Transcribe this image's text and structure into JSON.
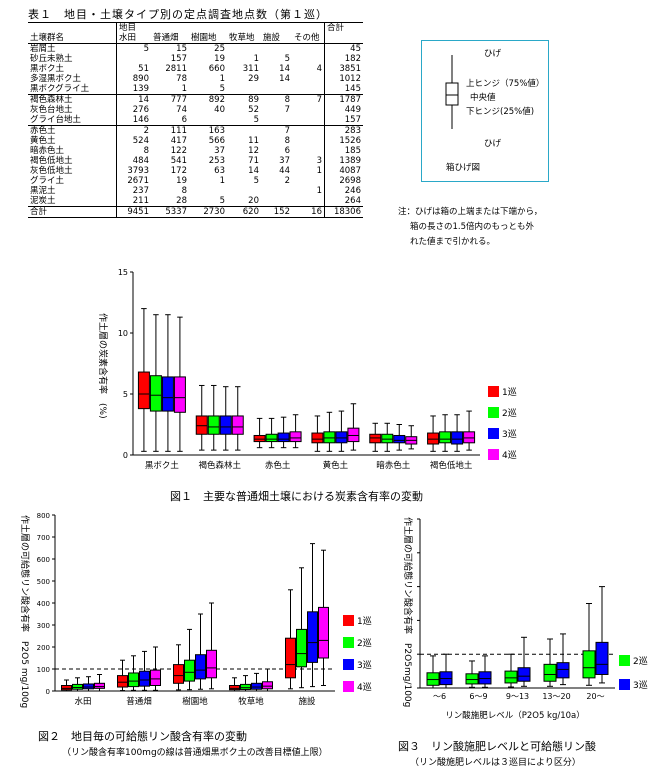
{
  "table": {
    "title": "表１　地目・土壌タイプ別の定点調査地点数（第１巡）",
    "header_group": "地目",
    "header_total": "合計",
    "header_soil": "土壌群名",
    "columns": [
      "水田",
      "普通畑",
      "樹園地",
      "牧草地",
      "施設",
      "その他"
    ],
    "rows": [
      {
        "name": "岩屑土",
        "vals": [
          "5",
          "15",
          "25",
          "",
          "",
          ""
        ],
        "total": "45"
      },
      {
        "name": "砂丘未熟土",
        "vals": [
          "",
          "157",
          "19",
          "1",
          "5",
          ""
        ],
        "total": "182"
      },
      {
        "name": "黒ボク土",
        "vals": [
          "51",
          "2811",
          "660",
          "311",
          "14",
          "4"
        ],
        "total": "3851"
      },
      {
        "name": "多湿黒ボク土",
        "vals": [
          "890",
          "78",
          "1",
          "29",
          "14",
          ""
        ],
        "total": "1012"
      },
      {
        "name": "黒ボクグライ土",
        "vals": [
          "139",
          "1",
          "5",
          "",
          "",
          ""
        ],
        "total": "145"
      },
      {
        "name": "褐色森林土",
        "vals": [
          "14",
          "777",
          "892",
          "89",
          "8",
          "7"
        ],
        "total": "1787"
      },
      {
        "name": "灰色台地土",
        "vals": [
          "276",
          "74",
          "40",
          "52",
          "7",
          ""
        ],
        "total": "449"
      },
      {
        "name": "グライ台地土",
        "vals": [
          "146",
          "6",
          "",
          "5",
          "",
          ""
        ],
        "total": "157"
      },
      {
        "name": "赤色土",
        "vals": [
          "2",
          "111",
          "163",
          "",
          "7",
          ""
        ],
        "total": "283"
      },
      {
        "name": "黄色土",
        "vals": [
          "524",
          "417",
          "566",
          "11",
          "8",
          ""
        ],
        "total": "1526"
      },
      {
        "name": "暗赤色土",
        "vals": [
          "8",
          "122",
          "37",
          "12",
          "6",
          ""
        ],
        "total": "185"
      },
      {
        "name": "褐色低地土",
        "vals": [
          "484",
          "541",
          "253",
          "71",
          "37",
          "3"
        ],
        "total": "1389"
      },
      {
        "name": "灰色低地土",
        "vals": [
          "3793",
          "172",
          "63",
          "14",
          "44",
          "1"
        ],
        "total": "4087"
      },
      {
        "name": "グライ土",
        "vals": [
          "2671",
          "19",
          "1",
          "5",
          "2",
          ""
        ],
        "total": "2698"
      },
      {
        "name": "黒泥土",
        "vals": [
          "237",
          "8",
          "",
          "",
          "",
          "1"
        ],
        "total": "246"
      },
      {
        "name": "泥炭土",
        "vals": [
          "211",
          "28",
          "5",
          "20",
          "",
          ""
        ],
        "total": "264"
      }
    ],
    "sum_row": {
      "name": "合計",
      "vals": [
        "9451",
        "5337",
        "2730",
        "620",
        "152",
        "16"
      ],
      "total": "18306"
    }
  },
  "boxplot_legend": {
    "whisker_top": "ひげ",
    "upper_hinge": "上ヒンジ（75%値）",
    "median": "中央値",
    "lower_hinge": "下ヒンジ(25%値)",
    "whisker_bottom": "ひげ",
    "caption": "箱ひげ図"
  },
  "note": {
    "line1": "注：ひげは箱の上端または下端から，",
    "line2": "箱の長さの1.5倍内のもっとも外",
    "line3": "れた値まで引かれる。"
  },
  "colors": {
    "r1": "#ff0000",
    "r2": "#00ff00",
    "r3": "#0000ff",
    "r4": "#ff00ff"
  },
  "chart_data": [
    {
      "type": "box",
      "title": "図１　主要な普通畑土壌における炭素含有率の変動",
      "ylabel": "作土層の炭素含有率　(%)",
      "ylim": [
        0,
        15
      ],
      "yticks": [
        "0",
        "5",
        "10",
        "15"
      ],
      "legend_placement": "right",
      "categories": [
        "黒ボク土",
        "褐色森林土",
        "赤色土",
        "黄色土",
        "暗赤色土",
        "褐色低地土"
      ],
      "series": [
        {
          "name": "1巡",
          "boxes": [
            [
              0.3,
              3.8,
              5.0,
              6.8,
              12.0
            ],
            [
              0.4,
              1.7,
              2.4,
              3.2,
              5.7
            ],
            [
              0.6,
              1.1,
              1.3,
              1.6,
              3.0
            ],
            [
              0.3,
              1.0,
              1.3,
              1.8,
              3.2
            ],
            [
              0.3,
              1.0,
              1.4,
              1.7,
              2.6
            ],
            [
              0.3,
              0.9,
              1.3,
              1.8,
              3.2
            ]
          ]
        },
        {
          "name": "2巡",
          "boxes": [
            [
              0.3,
              3.6,
              4.9,
              6.5,
              11.5
            ],
            [
              0.4,
              1.7,
              2.3,
              3.2,
              5.7
            ],
            [
              0.6,
              1.1,
              1.3,
              1.7,
              3.0
            ],
            [
              0.3,
              1.0,
              1.4,
              1.9,
              3.5
            ],
            [
              0.3,
              1.0,
              1.3,
              1.7,
              2.6
            ],
            [
              0.3,
              1.0,
              1.3,
              1.9,
              3.3
            ]
          ]
        },
        {
          "name": "3巡",
          "boxes": [
            [
              0.3,
              3.6,
              4.7,
              6.4,
              11.5
            ],
            [
              0.4,
              1.7,
              2.3,
              3.2,
              5.6
            ],
            [
              0.6,
              1.1,
              1.3,
              1.8,
              3.1
            ],
            [
              0.3,
              1.0,
              1.4,
              1.9,
              3.6
            ],
            [
              0.4,
              1.0,
              1.2,
              1.6,
              2.5
            ],
            [
              0.3,
              0.9,
              1.3,
              1.9,
              3.3
            ]
          ]
        },
        {
          "name": "4巡",
          "boxes": [
            [
              0.3,
              3.5,
              4.7,
              6.4,
              11.3
            ],
            [
              0.4,
              1.7,
              2.3,
              3.2,
              5.6
            ],
            [
              0.6,
              1.1,
              1.4,
              1.9,
              3.3
            ],
            [
              0.4,
              1.1,
              1.6,
              2.2,
              4.2
            ],
            [
              0.5,
              0.9,
              1.2,
              1.5,
              2.4
            ],
            [
              0.4,
              1.0,
              1.4,
              1.9,
              3.6
            ]
          ]
        }
      ]
    },
    {
      "type": "box",
      "title": "図２　地目毎の可給態リン酸含有率の変動",
      "subtitle": "（リン酸含有率100mgの線は普通畑黒ボク土の改善目標値上限）",
      "ylabel": "作土層の可給態リン酸含有率　P2O5 mg/100g",
      "ylim": [
        0,
        800
      ],
      "yticks": [
        "0",
        "100",
        "200",
        "300",
        "400",
        "500",
        "600",
        "700",
        "800"
      ],
      "reference_line": 100,
      "legend_placement": "right",
      "categories": [
        "水田",
        "普通畑",
        "樹園地",
        "牧草地",
        "施設"
      ],
      "series": [
        {
          "name": "1巡",
          "boxes": [
            [
              0,
              5,
              12,
              25,
              50
            ],
            [
              2,
              18,
              40,
              70,
              140
            ],
            [
              5,
              35,
              70,
              120,
              210
            ],
            [
              0,
              6,
              12,
              25,
              60
            ],
            [
              10,
              60,
              120,
              240,
              460
            ]
          ]
        },
        {
          "name": "2巡",
          "boxes": [
            [
              0,
              8,
              16,
              30,
              60
            ],
            [
              3,
              20,
              45,
              82,
              160
            ],
            [
              6,
              45,
              85,
              140,
              280
            ],
            [
              0,
              7,
              15,
              30,
              70
            ],
            [
              15,
              110,
              170,
              280,
              560
            ]
          ]
        },
        {
          "name": "3巡",
          "boxes": [
            [
              0,
              10,
              18,
              32,
              65
            ],
            [
              3,
              22,
              50,
              90,
              180
            ],
            [
              8,
              55,
              95,
              165,
              350
            ],
            [
              0,
              8,
              18,
              35,
              80
            ],
            [
              20,
              130,
              220,
              360,
              670
            ]
          ]
        },
        {
          "name": "4巡",
          "boxes": [
            [
              0,
              12,
              20,
              35,
              75
            ],
            [
              3,
              25,
              55,
              95,
              200
            ],
            [
              10,
              60,
              105,
              185,
              400
            ],
            [
              0,
              10,
              22,
              42,
              100
            ],
            [
              25,
              150,
              230,
              380,
              640
            ]
          ]
        }
      ]
    },
    {
      "type": "box",
      "title": "図３　リン酸施肥レベルと可給態リン酸",
      "subtitle": "（リン酸施肥レベルは３巡目により区分）",
      "xlabel": "リン酸施肥レベル（P2O5 kg/10a）",
      "ylabel": "作土層の可給態リン酸含有率　P2O5mg/100g",
      "ylim": [
        0,
        500
      ],
      "reference_line": 100,
      "legend_placement": "right",
      "categories": [
        "～6",
        "6～9",
        "9～13",
        "13～20",
        "20～"
      ],
      "series": [
        {
          "name": "2巡",
          "boxes": [
            [
              0,
              8,
              25,
              45,
              95
            ],
            [
              2,
              12,
              25,
              42,
              80
            ],
            [
              3,
              15,
              30,
              50,
              100
            ],
            [
              5,
              20,
              40,
              70,
              145
            ],
            [
              8,
              30,
              60,
              110,
              250
            ]
          ]
        },
        {
          "name": "3巡",
          "boxes": [
            [
              0,
              10,
              28,
              48,
              100
            ],
            [
              2,
              12,
              28,
              48,
              95
            ],
            [
              5,
              20,
              35,
              60,
              150
            ],
            [
              10,
              30,
              55,
              75,
              160
            ],
            [
              15,
              40,
              70,
              135,
              300
            ]
          ]
        }
      ]
    }
  ]
}
